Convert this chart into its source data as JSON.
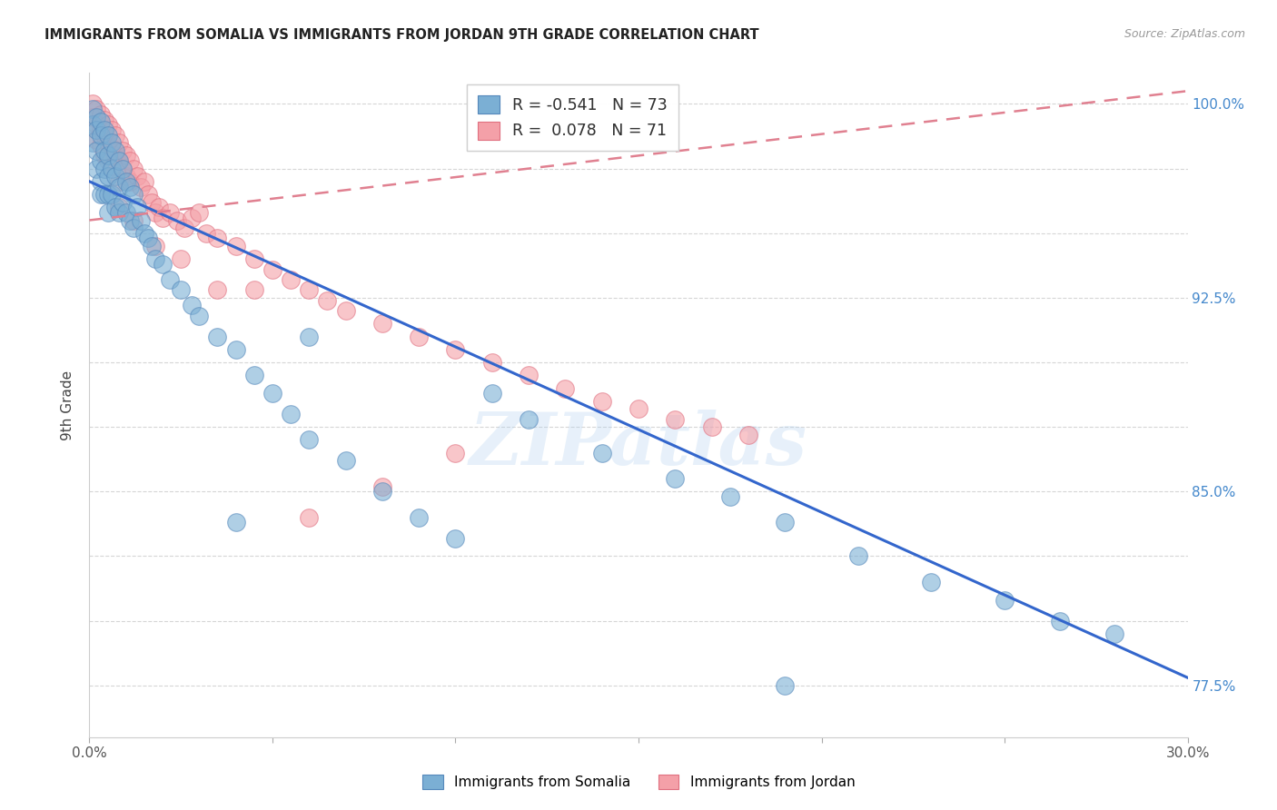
{
  "title": "IMMIGRANTS FROM SOMALIA VS IMMIGRANTS FROM JORDAN 9TH GRADE CORRELATION CHART",
  "source": "Source: ZipAtlas.com",
  "ylabel": "9th Grade",
  "xmin": 0.0,
  "xmax": 0.3,
  "ymin": 0.755,
  "ymax": 1.012,
  "somalia_color": "#7BAFD4",
  "somalia_edge": "#5588BB",
  "jordan_color": "#F4A0A8",
  "jordan_edge": "#E07080",
  "somalia_line_color": "#3366CC",
  "jordan_line_color": "#E08090",
  "watermark": "ZIPatlas",
  "ytick_vals": [
    0.775,
    0.8,
    0.825,
    0.85,
    0.875,
    0.9,
    0.925,
    0.95,
    0.975,
    1.0
  ],
  "ytick_labels": [
    "77.5%",
    "",
    "",
    "85.0%",
    "",
    "",
    "92.5%",
    "",
    "",
    "100.0%"
  ],
  "somalia_R": -0.541,
  "somalia_N": 73,
  "jordan_R": 0.078,
  "jordan_N": 71,
  "somalia_line_x0": 0.0,
  "somalia_line_y0": 0.97,
  "somalia_line_x1": 0.3,
  "somalia_line_y1": 0.778,
  "jordan_line_x0": 0.0,
  "jordan_line_y0": 0.955,
  "jordan_line_x1": 0.3,
  "jordan_line_y1": 1.005,
  "som_pts_x": [
    0.001,
    0.001,
    0.001,
    0.002,
    0.002,
    0.002,
    0.002,
    0.003,
    0.003,
    0.003,
    0.003,
    0.003,
    0.004,
    0.004,
    0.004,
    0.004,
    0.005,
    0.005,
    0.005,
    0.005,
    0.005,
    0.006,
    0.006,
    0.006,
    0.007,
    0.007,
    0.007,
    0.008,
    0.008,
    0.008,
    0.009,
    0.009,
    0.01,
    0.01,
    0.011,
    0.011,
    0.012,
    0.012,
    0.013,
    0.014,
    0.015,
    0.016,
    0.017,
    0.018,
    0.02,
    0.022,
    0.025,
    0.028,
    0.03,
    0.035,
    0.04,
    0.045,
    0.05,
    0.055,
    0.06,
    0.07,
    0.08,
    0.09,
    0.1,
    0.11,
    0.12,
    0.14,
    0.16,
    0.175,
    0.19,
    0.21,
    0.23,
    0.25,
    0.265,
    0.28,
    0.04,
    0.06,
    0.19
  ],
  "som_pts_y": [
    0.998,
    0.992,
    0.985,
    0.995,
    0.99,
    0.982,
    0.975,
    0.993,
    0.988,
    0.978,
    0.97,
    0.965,
    0.99,
    0.982,
    0.975,
    0.965,
    0.988,
    0.98,
    0.972,
    0.965,
    0.958,
    0.985,
    0.975,
    0.965,
    0.982,
    0.972,
    0.96,
    0.978,
    0.968,
    0.958,
    0.975,
    0.962,
    0.97,
    0.958,
    0.968,
    0.955,
    0.965,
    0.952,
    0.96,
    0.955,
    0.95,
    0.948,
    0.945,
    0.94,
    0.938,
    0.932,
    0.928,
    0.922,
    0.918,
    0.91,
    0.905,
    0.895,
    0.888,
    0.88,
    0.87,
    0.862,
    0.85,
    0.84,
    0.832,
    0.888,
    0.878,
    0.865,
    0.855,
    0.848,
    0.838,
    0.825,
    0.815,
    0.808,
    0.8,
    0.795,
    0.838,
    0.91,
    0.775
  ],
  "jor_pts_x": [
    0.001,
    0.001,
    0.002,
    0.002,
    0.002,
    0.003,
    0.003,
    0.003,
    0.004,
    0.004,
    0.004,
    0.005,
    0.005,
    0.005,
    0.006,
    0.006,
    0.006,
    0.007,
    0.007,
    0.008,
    0.008,
    0.008,
    0.009,
    0.009,
    0.01,
    0.01,
    0.011,
    0.011,
    0.012,
    0.013,
    0.014,
    0.015,
    0.016,
    0.017,
    0.018,
    0.019,
    0.02,
    0.022,
    0.024,
    0.026,
    0.028,
    0.03,
    0.032,
    0.035,
    0.04,
    0.045,
    0.05,
    0.055,
    0.06,
    0.065,
    0.07,
    0.08,
    0.09,
    0.1,
    0.11,
    0.12,
    0.13,
    0.14,
    0.15,
    0.16,
    0.17,
    0.18,
    0.008,
    0.012,
    0.018,
    0.025,
    0.035,
    0.045,
    0.06,
    0.08,
    0.1
  ],
  "jor_pts_y": [
    1.0,
    0.995,
    0.998,
    0.992,
    0.986,
    0.996,
    0.99,
    0.984,
    0.994,
    0.988,
    0.98,
    0.992,
    0.985,
    0.978,
    0.99,
    0.983,
    0.976,
    0.988,
    0.98,
    0.985,
    0.978,
    0.97,
    0.982,
    0.975,
    0.98,
    0.972,
    0.978,
    0.97,
    0.975,
    0.972,
    0.968,
    0.97,
    0.965,
    0.962,
    0.958,
    0.96,
    0.956,
    0.958,
    0.955,
    0.952,
    0.956,
    0.958,
    0.95,
    0.948,
    0.945,
    0.94,
    0.936,
    0.932,
    0.928,
    0.924,
    0.92,
    0.915,
    0.91,
    0.905,
    0.9,
    0.895,
    0.89,
    0.885,
    0.882,
    0.878,
    0.875,
    0.872,
    0.96,
    0.955,
    0.945,
    0.94,
    0.928,
    0.928,
    0.84,
    0.852,
    0.865
  ]
}
